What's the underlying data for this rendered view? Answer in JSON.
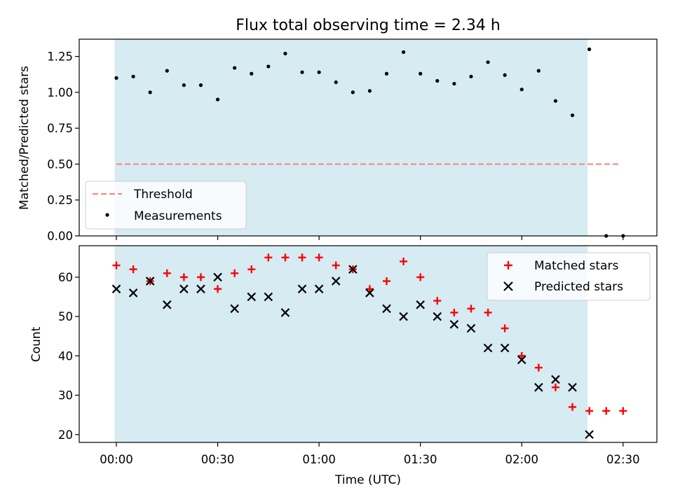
{
  "title": "Flux total observing time = 2.34 h",
  "xlabel": "Time (UTC)",
  "x_ticks": [
    "00:00",
    "00:30",
    "01:00",
    "01:30",
    "02:00",
    "02:30"
  ],
  "chart_data": [
    {
      "type": "scatter",
      "ylabel": "Matched/Predicted stars",
      "ylim": [
        0,
        1.37
      ],
      "xlim": [
        "23:49",
        "02:40"
      ],
      "y_ticks": [
        "0.00",
        "0.25",
        "0.50",
        "0.75",
        "1.00",
        "1.25"
      ],
      "shaded_interval": [
        "23:59:30",
        "02:19:30"
      ],
      "shaded_color": "#add8e6",
      "threshold": {
        "name": "Threshold",
        "value": 0.5,
        "x_start": "00:00",
        "x_end": "02:29",
        "color": "#ff7f7f"
      },
      "legend": {
        "position": "lower-left",
        "entries": [
          "Threshold",
          "Measurements"
        ]
      },
      "series": [
        {
          "name": "Measurements",
          "color": "#000000",
          "x": [
            "00:00",
            "00:05",
            "00:10",
            "00:15",
            "00:20",
            "00:25",
            "00:30",
            "00:35",
            "00:40",
            "00:45",
            "00:50",
            "00:55",
            "01:00",
            "01:05",
            "01:10",
            "01:15",
            "01:20",
            "01:25",
            "01:30",
            "01:35",
            "01:40",
            "01:45",
            "01:50",
            "01:55",
            "02:00",
            "02:05",
            "02:10",
            "02:15",
            "02:20",
            "02:25",
            "02:30"
          ],
          "y": [
            1.1,
            1.11,
            1.0,
            1.15,
            1.05,
            1.05,
            0.95,
            1.17,
            1.13,
            1.18,
            1.27,
            1.14,
            1.14,
            1.07,
            1.0,
            1.01,
            1.13,
            1.28,
            1.13,
            1.08,
            1.06,
            1.11,
            1.21,
            1.12,
            1.02,
            1.15,
            0.94,
            0.84,
            1.3,
            0.0,
            0.0
          ]
        }
      ]
    },
    {
      "type": "scatter",
      "ylabel": "Count",
      "ylim": [
        18,
        68
      ],
      "y_ticks": [
        "20",
        "30",
        "40",
        "50",
        "60"
      ],
      "legend": {
        "position": "top-right",
        "entries": [
          "Matched stars",
          "Predicted stars"
        ]
      },
      "series": [
        {
          "name": "Matched stars",
          "marker": "plus",
          "color": "#ff0000",
          "x": [
            "00:00",
            "00:05",
            "00:10",
            "00:15",
            "00:20",
            "00:25",
            "00:30",
            "00:35",
            "00:40",
            "00:45",
            "00:50",
            "00:55",
            "01:00",
            "01:05",
            "01:10",
            "01:15",
            "01:20",
            "01:25",
            "01:30",
            "01:35",
            "01:40",
            "01:45",
            "01:50",
            "01:55",
            "02:00",
            "02:05",
            "02:10",
            "02:15",
            "02:20",
            "02:25",
            "02:30"
          ],
          "y": [
            63,
            62,
            59,
            61,
            60,
            60,
            57,
            61,
            62,
            65,
            65,
            65,
            65,
            63,
            62,
            57,
            59,
            64,
            60,
            54,
            51,
            52,
            51,
            47,
            40,
            37,
            32,
            27,
            26,
            26,
            26
          ]
        },
        {
          "name": "Predicted stars",
          "marker": "x",
          "color": "#000000",
          "x": [
            "00:00",
            "00:05",
            "00:10",
            "00:15",
            "00:20",
            "00:25",
            "00:30",
            "00:35",
            "00:40",
            "00:45",
            "00:50",
            "00:55",
            "01:00",
            "01:05",
            "01:10",
            "01:15",
            "01:20",
            "01:25",
            "01:30",
            "01:35",
            "01:40",
            "01:45",
            "01:50",
            "01:55",
            "02:00",
            "02:05",
            "02:10",
            "02:15",
            "02:20"
          ],
          "y": [
            57,
            56,
            59,
            53,
            57,
            57,
            60,
            52,
            55,
            55,
            51,
            57,
            57,
            59,
            62,
            56,
            52,
            50,
            53,
            50,
            48,
            47,
            42,
            42,
            39,
            32,
            34,
            32,
            20
          ]
        }
      ]
    }
  ]
}
